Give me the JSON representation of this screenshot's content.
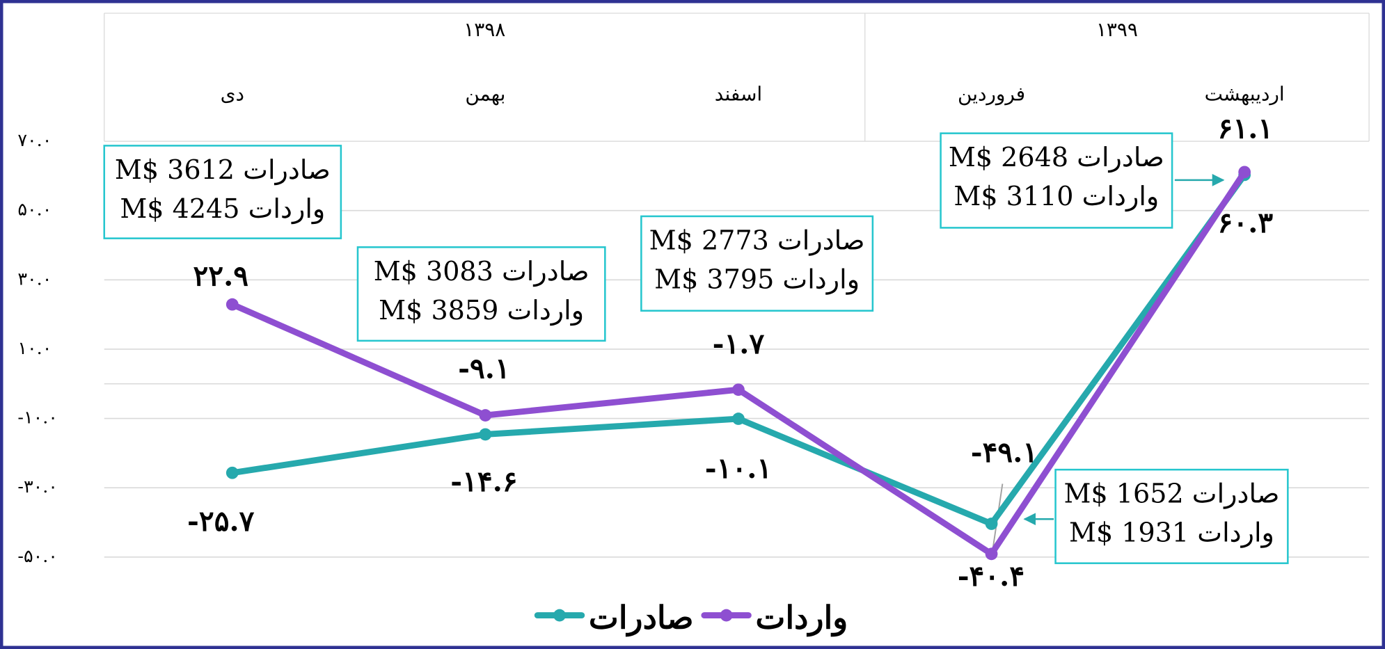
{
  "chart_data": {
    "type": "line",
    "categories": [
      "دی",
      "بهمن",
      "اسفند",
      "فروردین",
      "اردیبهشت"
    ],
    "category_groups": [
      {
        "label": "۱۳۹۸",
        "span": 3
      },
      {
        "label": "۱۳۹۹",
        "span": 2
      }
    ],
    "series": [
      {
        "name": "صادرات",
        "color": "#26a9ad",
        "values": [
          -25.7,
          -14.6,
          -10.1,
          -40.4,
          60.3
        ],
        "value_labels": [
          "-۲۵.۷",
          "-۱۴.۶",
          "-۱۰.۱",
          "-۴۰.۴",
          "۶۰.۳"
        ]
      },
      {
        "name": "واردات",
        "color": "#8e4fd1",
        "values": [
          22.9,
          -9.1,
          -1.7,
          -49.1,
          61.1
        ],
        "value_labels": [
          "۲۲.۹",
          "-۹.۱",
          "-۱.۷",
          "-۴۹.۱",
          "۶۱.۱"
        ]
      }
    ],
    "ylim": [
      -50,
      70
    ],
    "yticks": [
      {
        "value": 70,
        "label": "۷۰.۰"
      },
      {
        "value": 50,
        "label": "۵۰.۰"
      },
      {
        "value": 30,
        "label": "۳۰.۰"
      },
      {
        "value": 10,
        "label": "۱۰.۰"
      },
      {
        "value": -10,
        "label": "-۱۰.۰"
      },
      {
        "value": -30,
        "label": "-۳۰.۰"
      },
      {
        "value": -50,
        "label": "-۵۰.۰"
      }
    ],
    "grid": true,
    "legend": "bottom",
    "annotations": [
      {
        "lines": [
          "M$ 3612 صادرات",
          "M$ 4245 واردات"
        ]
      },
      {
        "lines": [
          "M$ 3083 صادرات",
          "M$ 3859 واردات"
        ]
      },
      {
        "lines": [
          "M$ 2773 صادرات",
          "M$ 3795 واردات"
        ]
      },
      {
        "lines": [
          "M$ 2648 صادرات",
          "M$ 3110 واردات"
        ]
      },
      {
        "lines": [
          "M$ 1652 صادرات",
          "M$ 1931 واردات"
        ]
      }
    ]
  }
}
